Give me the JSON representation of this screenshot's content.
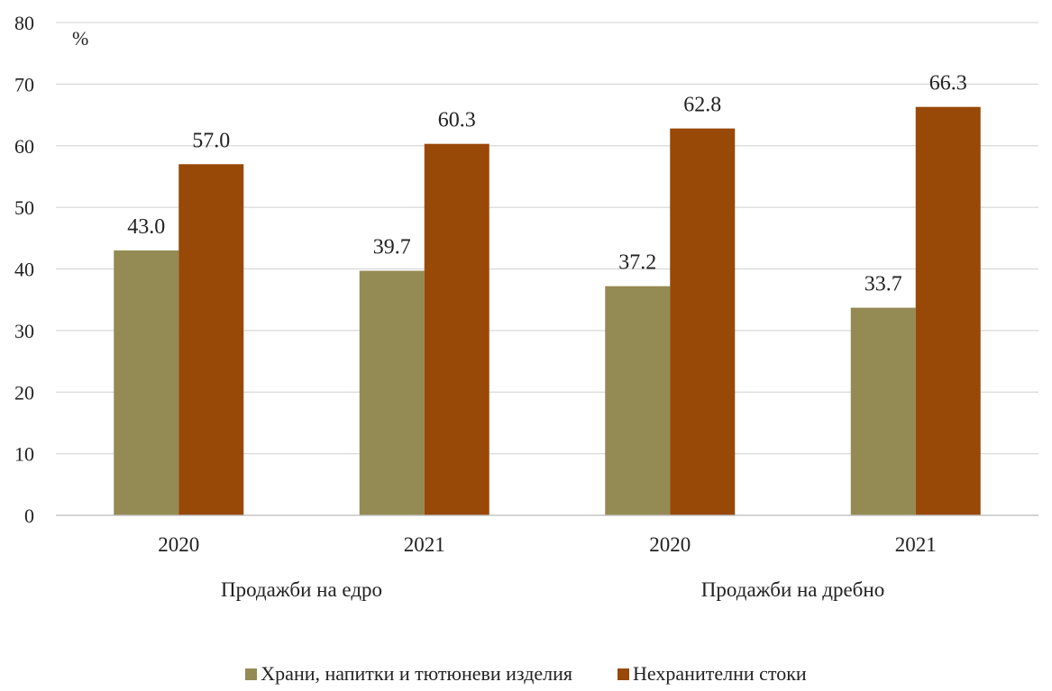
{
  "chart_data": {
    "type": "bar",
    "unit": "%",
    "ylim": [
      0,
      80
    ],
    "yticks": [
      0,
      10,
      20,
      30,
      40,
      50,
      60,
      70,
      80
    ],
    "grid": true,
    "legend_position": "bottom",
    "groups": [
      {
        "label": "Продажби на едро",
        "categories": [
          "2020",
          "2021"
        ]
      },
      {
        "label": "Продажби на дребно",
        "categories": [
          "2020",
          "2021"
        ]
      }
    ],
    "categories": [
      "2020",
      "2021",
      "2020",
      "2021"
    ],
    "series": [
      {
        "name": "Храни, напитки и тютюневи изделия",
        "color": "#948a54",
        "values": [
          43.0,
          39.7,
          37.2,
          33.7
        ],
        "labels": [
          "43.0",
          "39.7",
          "37.2",
          "33.7"
        ]
      },
      {
        "name": "Нехранителни стоки",
        "color": "#984807",
        "values": [
          57.0,
          60.3,
          62.8,
          66.3
        ],
        "labels": [
          "57.0",
          "60.3",
          "62.8",
          "66.3"
        ]
      }
    ]
  }
}
